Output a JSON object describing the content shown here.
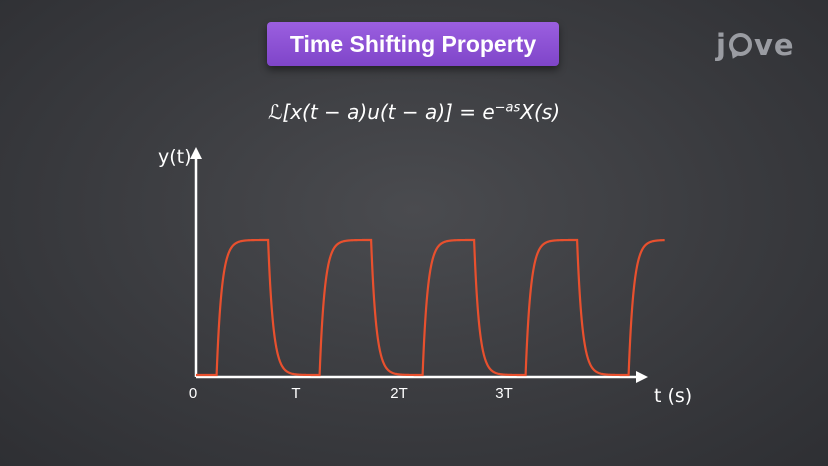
{
  "header": {
    "title": "Time Shifting Property",
    "logo_text": "jove"
  },
  "formula": {
    "lhs": "ℒ[x(t − a)u(t − a)] = e",
    "exponent": "−as",
    "rhs": "X(s)"
  },
  "chart_data": {
    "type": "line",
    "ylabel": "y(t)",
    "xlabel": "t (s)",
    "x_ticks": [
      "0",
      "T",
      "2T",
      "3T"
    ],
    "x_tick_values": [
      0,
      1,
      2,
      3
    ],
    "xlim": [
      0,
      4.55
    ],
    "ylim": [
      0,
      1
    ],
    "signal": {
      "description": "periodic exponential rise/decay pulses",
      "pulse_onsets": [
        0.2,
        1.2,
        2.2,
        3.2,
        4.2
      ],
      "pulse_width": 0.5,
      "high_level": 1,
      "low_level": 0
    },
    "colors": {
      "signal": "#e8502e",
      "axes": "#ffffff"
    }
  }
}
